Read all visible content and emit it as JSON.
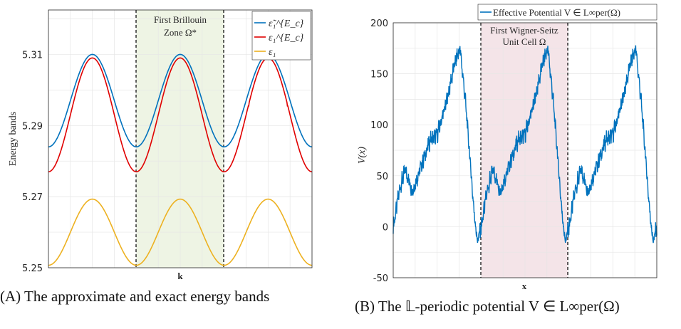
{
  "panels": [
    {
      "id": "A",
      "caption": "(A)  The approximate and exact energy bands",
      "ylabel": "Energy bands",
      "xlabel": "k",
      "yticks": [
        "5.25",
        "5.27",
        "5.29",
        "5.31"
      ],
      "annotation_line1": "First Brillouin",
      "annotation_line2": "Zone Ω*",
      "legend": [
        "ε̃₁^{E_c}",
        "ε₁^{E_c}",
        "ε₁"
      ],
      "colors": {
        "series1": "#0072BD",
        "series2": "#E00000",
        "series3": "#EDB120",
        "zone_fill": "#EEF4E4"
      }
    },
    {
      "id": "B",
      "caption": "(B)  The 𝕃-periodic potential V ∈ L∞per(Ω)",
      "ylabel": "V(x)",
      "xlabel": "x",
      "yticks": [
        "-50",
        "0",
        "50",
        "100",
        "150",
        "200"
      ],
      "annotation_line1": "First Wigner-Seitz",
      "annotation_line2": "Unit Cell Ω",
      "legend": [
        "Effective Potential V ∈ L∞per(Ω)"
      ],
      "colors": {
        "series1": "#0072BD",
        "cell_fill": "#F4E4E8"
      }
    }
  ],
  "chart_data": [
    {
      "type": "line",
      "title": "",
      "xlabel": "k",
      "ylabel": "Energy bands",
      "ylim": [
        5.25,
        5.32
      ],
      "x": [
        -1.5,
        -1.25,
        -1.0,
        -0.75,
        -0.5,
        -0.25,
        0.0,
        0.25,
        0.5,
        0.75,
        1.0,
        1.25,
        1.5
      ],
      "series": [
        {
          "name": "ε̃₁^{E_c}",
          "values": [
            5.31,
            5.297,
            5.284,
            5.297,
            5.31,
            5.297,
            5.284,
            5.297,
            5.31,
            5.297,
            5.284,
            5.297,
            5.31
          ]
        },
        {
          "name": "ε₁^{E_c}",
          "values": [
            5.309,
            5.295,
            5.277,
            5.295,
            5.309,
            5.295,
            5.277,
            5.295,
            5.309,
            5.295,
            5.277,
            5.295,
            5.309
          ]
        },
        {
          "name": "ε₁",
          "values": [
            5.269,
            5.26,
            5.251,
            5.26,
            5.269,
            5.26,
            5.251,
            5.26,
            5.269,
            5.26,
            5.251,
            5.26,
            5.269
          ]
        }
      ],
      "grid": true,
      "legend_position": "top-right"
    },
    {
      "type": "line",
      "title": "",
      "xlabel": "x",
      "ylabel": "V(x)",
      "ylim": [
        -50,
        200
      ],
      "x": [
        0.0,
        0.05,
        0.1,
        0.15,
        0.2,
        0.25,
        0.3,
        0.35,
        0.4,
        0.45,
        0.5,
        0.55,
        0.6,
        0.65,
        0.7,
        0.75,
        0.8,
        0.85,
        0.9,
        0.95,
        1.0
      ],
      "series": [
        {
          "name": "Effective Potential V ∈ L∞per(Ω)",
          "values": [
            0,
            52,
            88,
            174,
            120,
            35,
            -5,
            15,
            50,
            90,
            175,
            115,
            30,
            -38,
            0,
            52,
            88,
            174,
            120,
            35,
            2
          ]
        }
      ],
      "grid": true,
      "legend_position": "top-right"
    }
  ]
}
